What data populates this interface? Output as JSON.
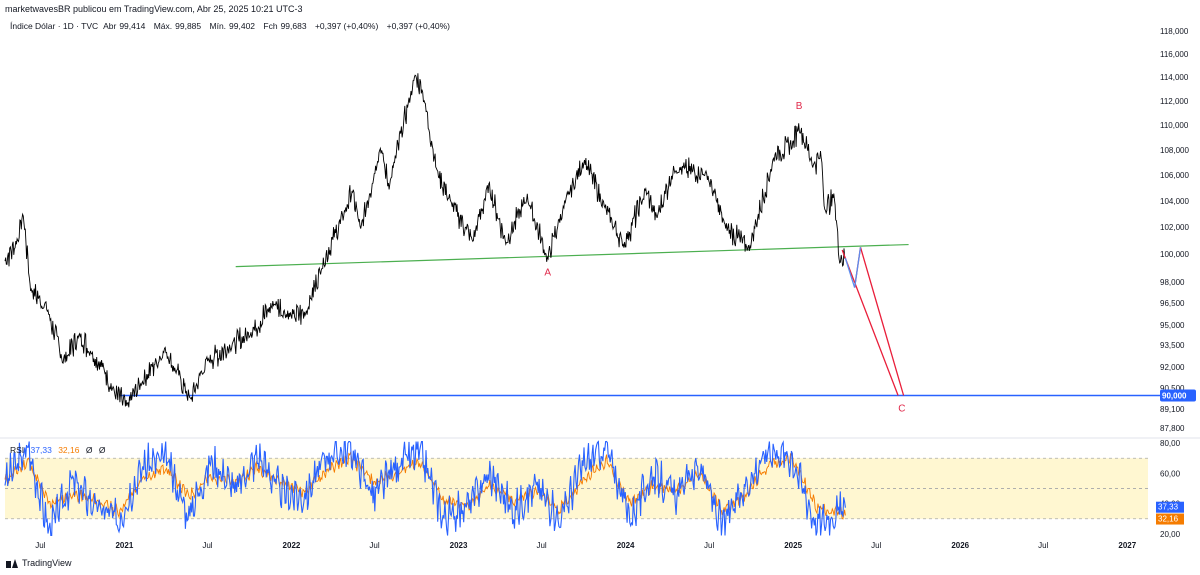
{
  "header": {
    "published_by": "marketwavesBR publicou em TradingView.com, Abr 25, 2025 10:21 UTC-3"
  },
  "legend": {
    "symbol": "Índice Dólar · 1D · TVC",
    "open_label": "Abr",
    "open_value": "99,414",
    "high_label": "Máx.",
    "high_value": "99,885",
    "low_label": "Mín.",
    "low_value": "99,402",
    "close_label": "Fch",
    "close_value": "99,683",
    "change": "+0,397 (+0,40%)",
    "change2": "+0,397 (+0,40%)"
  },
  "rsi_legend": {
    "name": "RSI",
    "value": "37,33",
    "ma_value": "32,16",
    "extra1": "Ø",
    "extra2": "Ø"
  },
  "footer": {
    "brand": "TradingView"
  },
  "colors": {
    "price": "#000000",
    "support_line": "#2962ff",
    "trend_line": "#4caf50",
    "projection": "#e91e3a",
    "projection_alt": "#5b8def",
    "wave_label": "#e0284a",
    "rsi_line": "#2962ff",
    "rsi_ma": "#f57c00",
    "rsi_band": "#fff7d1",
    "axis_text": "#131722"
  },
  "chart_data": [
    {
      "type": "line",
      "title": "Índice Dólar · 1D · TVC",
      "y_axis": {
        "ylim": [
          86.8,
          118.8
        ],
        "ticks": [
          118.0,
          116.0,
          114.0,
          112.0,
          110.0,
          108.0,
          106.0,
          104.0,
          102.0,
          100.0,
          98.0,
          96.5,
          95.0,
          93.5,
          92.0,
          90.5,
          89.1,
          87.8
        ],
        "tick_labels": [
          "118,000",
          "116,000",
          "114,000",
          "112,000",
          "110,000",
          "108,000",
          "106,000",
          "104,000",
          "102,000",
          "100,000",
          "98,000",
          "96,500",
          "95,000",
          "93,500",
          "92,000",
          "90,500",
          "89,100",
          "87,800"
        ]
      },
      "x_axis": {
        "range": [
          "2020-04-15",
          "2027-02-15"
        ],
        "ticks": [
          "2020-07-01",
          "2021-01-01",
          "2021-07-01",
          "2022-01-01",
          "2022-07-01",
          "2023-01-01",
          "2023-07-01",
          "2024-01-01",
          "2024-07-01",
          "2025-01-01",
          "2025-07-01",
          "2026-01-01",
          "2026-07-01",
          "2027-01-01"
        ],
        "tick_labels": [
          "Jul",
          "2021",
          "Jul",
          "2022",
          "Jul",
          "2023",
          "Jul",
          "2024",
          "Jul",
          "2025",
          "Jul",
          "2026",
          "Jul",
          "2027"
        ]
      },
      "series": [
        {
          "x": [
            "2020-04-15",
            "2020-05-10",
            "2020-05-25",
            "2020-06-10",
            "2020-07-15",
            "2020-08-20",
            "2020-09-25",
            "2020-10-20",
            "2020-11-15",
            "2020-12-10",
            "2021-01-06",
            "2021-02-05",
            "2021-03-31",
            "2021-05-25",
            "2021-06-30",
            "2021-08-20",
            "2021-09-30",
            "2021-11-24",
            "2021-12-31",
            "2022-02-01",
            "2022-03-07",
            "2022-04-28",
            "2022-05-13",
            "2022-06-01",
            "2022-07-14",
            "2022-08-02",
            "2022-09-28",
            "2022-10-13",
            "2022-11-15",
            "2022-12-15",
            "2023-02-01",
            "2023-03-08",
            "2023-04-14",
            "2023-05-31",
            "2023-07-14",
            "2023-08-22",
            "2023-10-03",
            "2023-11-15",
            "2023-12-28",
            "2024-02-14",
            "2024-03-08",
            "2024-04-16",
            "2024-06-26",
            "2024-08-05",
            "2024-09-27",
            "2024-11-22",
            "2024-12-31",
            "2025-01-13",
            "2025-02-14",
            "2025-03-03",
            "2025-03-11",
            "2025-04-01",
            "2025-04-11",
            "2025-04-25"
          ],
          "values": [
            99.5,
            100.8,
            102.9,
            97.5,
            96.2,
            92.4,
            94.2,
            93.0,
            92.0,
            90.2,
            89.3,
            90.8,
            93.2,
            89.7,
            92.4,
            93.4,
            94.3,
            96.5,
            95.6,
            95.8,
            99.0,
            103.2,
            104.8,
            101.8,
            108.2,
            105.1,
            114.1,
            113.0,
            106.3,
            103.9,
            101.0,
            105.2,
            100.8,
            104.3,
            99.6,
            103.9,
            107.2,
            103.6,
            100.6,
            104.8,
            102.7,
            106.5,
            106.1,
            102.1,
            100.4,
            107.6,
            108.5,
            110.0,
            106.8,
            107.5,
            103.4,
            104.3,
            99.8,
            99.7
          ]
        }
      ],
      "annotations": [
        {
          "label": "A",
          "x": "2023-07-14",
          "y": 99.6
        },
        {
          "label": "B",
          "x": "2025-01-13",
          "y": 110.0
        },
        {
          "label": "C",
          "x": "2025-08-25",
          "y": 90.0
        }
      ],
      "horizontal_line": {
        "y": 90.0,
        "label": "90,000"
      },
      "trend_line": {
        "from": {
          "x": "2021-09-01",
          "y": 99.1
        },
        "to": {
          "x": "2025-09-10",
          "y": 100.7
        }
      },
      "projections": [
        {
          "color": "red",
          "points": [
            {
              "x": "2025-04-18",
              "y": 100.3
            },
            {
              "x": "2025-08-18",
              "y": 90.0
            }
          ]
        },
        {
          "color": "red",
          "points": [
            {
              "x": "2025-05-28",
              "y": 100.5
            },
            {
              "x": "2025-08-30",
              "y": 90.0
            }
          ]
        },
        {
          "color": "red",
          "points": [
            {
              "x": "2025-05-15",
              "y": 97.6
            },
            {
              "x": "2025-05-28",
              "y": 100.5
            }
          ]
        },
        {
          "color": "blue",
          "points": [
            {
              "x": "2025-04-25",
              "y": 99.7
            },
            {
              "x": "2025-05-15",
              "y": 97.6
            }
          ]
        },
        {
          "color": "blue",
          "points": [
            {
              "x": "2025-05-15",
              "y": 97.6
            },
            {
              "x": "2025-05-28",
              "y": 100.5
            }
          ]
        }
      ],
      "last_price_label": "90,000",
      "grid": false
    },
    {
      "type": "line",
      "title": "RSI",
      "ylim": [
        18,
        82
      ],
      "ticks": [
        80,
        60,
        40,
        20
      ],
      "tick_labels": [
        "80,00",
        "60,00",
        "40,00",
        "20,00"
      ],
      "band": [
        30,
        70
      ],
      "series": [
        {
          "name": "RSI",
          "x": [
            "2020-04-15",
            "2020-06-05",
            "2020-07-20",
            "2020-09-10",
            "2020-10-30",
            "2020-12-20",
            "2021-02-10",
            "2021-04-01",
            "2021-05-20",
            "2021-07-10",
            "2021-09-01",
            "2021-10-20",
            "2021-12-10",
            "2022-01-30",
            "2022-03-20",
            "2022-05-10",
            "2022-06-30",
            "2022-08-20",
            "2022-10-10",
            "2022-11-30",
            "2023-01-20",
            "2023-03-10",
            "2023-05-01",
            "2023-06-20",
            "2023-08-10",
            "2023-09-30",
            "2023-11-20",
            "2024-01-10",
            "2024-03-01",
            "2024-04-20",
            "2024-06-10",
            "2024-07-30",
            "2024-09-20",
            "2024-11-10",
            "2024-12-30",
            "2025-02-20",
            "2025-04-10",
            "2025-04-25"
          ],
          "values": [
            55,
            76,
            22,
            55,
            38,
            30,
            65,
            70,
            32,
            68,
            50,
            72,
            48,
            44,
            72,
            76,
            45,
            66,
            74,
            30,
            38,
            60,
            35,
            52,
            30,
            66,
            76,
            30,
            60,
            45,
            66,
            25,
            52,
            76,
            70,
            26,
            35,
            37.33
          ]
        },
        {
          "name": "MA",
          "x": [
            "2020-04-15",
            "2020-06-05",
            "2020-07-20",
            "2020-09-10",
            "2020-10-30",
            "2020-12-20",
            "2021-02-10",
            "2021-04-01",
            "2021-05-20",
            "2021-07-10",
            "2021-09-01",
            "2021-10-20",
            "2021-12-10",
            "2022-01-30",
            "2022-03-20",
            "2022-05-10",
            "2022-06-30",
            "2022-08-20",
            "2022-10-10",
            "2022-11-30",
            "2023-01-20",
            "2023-03-10",
            "2023-05-01",
            "2023-06-20",
            "2023-08-10",
            "2023-09-30",
            "2023-11-20",
            "2024-01-10",
            "2024-03-01",
            "2024-04-20",
            "2024-06-10",
            "2024-07-30",
            "2024-09-20",
            "2024-11-10",
            "2024-12-30",
            "2025-02-20",
            "2025-04-10",
            "2025-04-25"
          ],
          "values": [
            55,
            68,
            40,
            46,
            42,
            35,
            56,
            64,
            45,
            58,
            54,
            64,
            54,
            48,
            62,
            70,
            54,
            60,
            68,
            42,
            38,
            52,
            42,
            48,
            36,
            56,
            68,
            40,
            52,
            48,
            60,
            36,
            46,
            66,
            70,
            38,
            34,
            32.16
          ]
        }
      ],
      "x_axis": {
        "ticks": [
          "2020-07-01",
          "2021-01-01",
          "2021-07-01",
          "2022-01-01",
          "2022-07-01",
          "2023-01-01",
          "2023-07-01",
          "2024-01-01",
          "2024-07-01",
          "2025-01-01",
          "2025-07-01",
          "2026-01-01",
          "2026-07-01",
          "2027-01-01"
        ],
        "tick_labels": [
          "Jul",
          "2021",
          "Jul",
          "2022",
          "Jul",
          "2023",
          "Jul",
          "2024",
          "Jul",
          "2025",
          "Jul",
          "2026",
          "Jul",
          "2027"
        ]
      },
      "value_labels": [
        "37,33",
        "32,16"
      ]
    }
  ]
}
